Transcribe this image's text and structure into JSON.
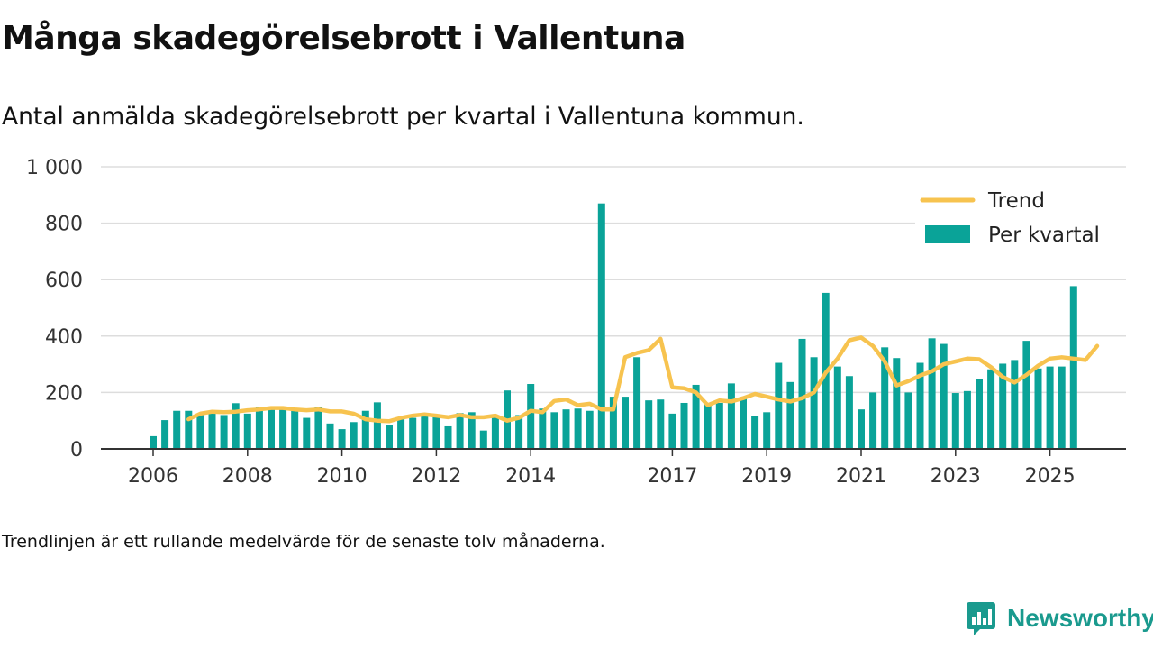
{
  "header": {
    "title": "Många skadegörelsebrott i Vallentuna",
    "subtitle": "Antal anmälda skadegörelsebrott per kvartal i Vallentuna kommun."
  },
  "footer": {
    "note": "Trendlinjen är ett rullande medelvärde för de senaste tolv månaderna.",
    "brand": "Newsworthy"
  },
  "colors": {
    "bar": "#0aa398",
    "trend": "#f7c34f",
    "grid": "#dddddd",
    "axis": "#333333",
    "brand": "#1a9a8e"
  },
  "chart_data": {
    "type": "bar",
    "title": "Många skadegörelsebrott i Vallentuna",
    "subtitle": "Antal anmälda skadegörelsebrott per kvartal i Vallentuna kommun.",
    "xlabel": "",
    "ylabel": "",
    "ylim": [
      0,
      1000
    ],
    "yticks": [
      0,
      200,
      400,
      600,
      800,
      1000
    ],
    "ytick_labels": [
      "0",
      "200",
      "400",
      "600",
      "800",
      "1 000"
    ],
    "xtick_labels": [
      {
        "label": "2006",
        "index": 0
      },
      {
        "label": "2008",
        "index": 8
      },
      {
        "label": "2010",
        "index": 16
      },
      {
        "label": "2012",
        "index": 24
      },
      {
        "label": "2014",
        "index": 32
      },
      {
        "label": "2017",
        "index": 44
      },
      {
        "label": "2019",
        "index": 52
      },
      {
        "label": "2021",
        "index": 60
      },
      {
        "label": "2023",
        "index": 68
      },
      {
        "label": "2025",
        "index": 76
      }
    ],
    "grid": true,
    "legend_position": "top-right",
    "series": [
      {
        "name": "Per kvartal",
        "type": "bar",
        "values": [
          45,
          102,
          135,
          135,
          120,
          135,
          120,
          162,
          125,
          147,
          145,
          140,
          135,
          110,
          147,
          90,
          70,
          95,
          135,
          165,
          83,
          110,
          110,
          122,
          120,
          80,
          127,
          130,
          65,
          115,
          207,
          120,
          230,
          143,
          130,
          140,
          143,
          135,
          870,
          185,
          185,
          325,
          172,
          175,
          125,
          163,
          227,
          160,
          163,
          232,
          183,
          118,
          130,
          305,
          237,
          390,
          325,
          553,
          292,
          258,
          140,
          200,
          360,
          322,
          200,
          305,
          392,
          372,
          198,
          205,
          248,
          282,
          302,
          315,
          383,
          285,
          292,
          292,
          577
        ]
      },
      {
        "name": "Trend",
        "type": "line",
        "start_index": 3,
        "values": [
          105,
          125,
          132,
          130,
          132,
          137,
          140,
          145,
          145,
          140,
          137,
          140,
          133,
          133,
          125,
          105,
          100,
          98,
          110,
          118,
          122,
          118,
          112,
          120,
          112,
          112,
          118,
          100,
          110,
          135,
          130,
          170,
          175,
          155,
          160,
          140,
          140,
          325,
          340,
          350,
          390,
          218,
          215,
          200,
          155,
          172,
          168,
          180,
          195,
          185,
          175,
          168,
          180,
          200,
          270,
          320,
          385,
          395,
          365,
          310,
          225,
          240,
          260,
          275,
          300,
          310,
          320,
          318,
          290,
          255,
          235,
          262,
          295,
          320,
          325,
          320,
          315,
          365
        ]
      }
    ]
  }
}
